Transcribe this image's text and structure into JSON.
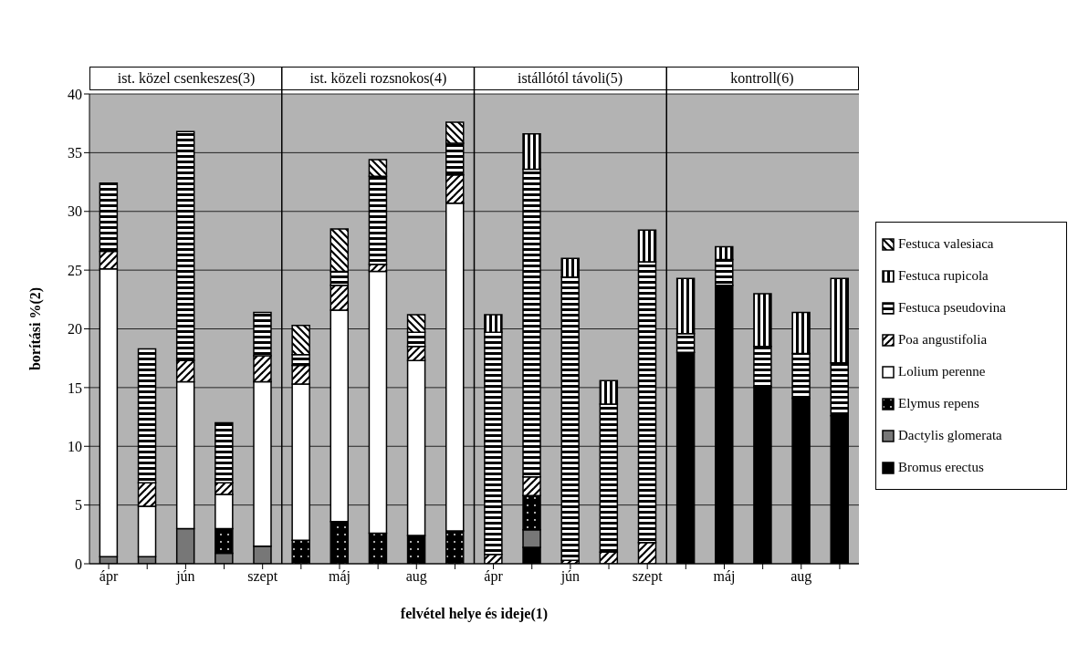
{
  "chart_data": {
    "type": "bar",
    "stacked": true,
    "xlabel": "felvétel helye és ideje(1)",
    "ylabel": "borítási %(2)",
    "annotations": [
      "ist. közel csenkeszes(3)",
      "ist. közeli rozsnokos(4)",
      "istállótól távoli(5)",
      "kontroll(6)"
    ],
    "categories": [
      "ápr",
      null,
      "jún",
      null,
      "szept",
      null,
      "máj",
      null,
      "aug",
      null,
      "ápr",
      null,
      "jún",
      null,
      "szept",
      null,
      "máj",
      null,
      "aug",
      null
    ],
    "series": [
      {
        "name": "Bromus erectus",
        "color": "#000000",
        "values": [
          0,
          0,
          0,
          0,
          0,
          0,
          0,
          0,
          0,
          0,
          0,
          1.4,
          0,
          0,
          0,
          18.0,
          23.7,
          15.1,
          14.1,
          12.6
        ]
      },
      {
        "name": "Dactylis  glomerata",
        "color": "#777777",
        "values": [
          0.6,
          0.6,
          3.0,
          0.9,
          1.5,
          0,
          0,
          0,
          0,
          0,
          0,
          1.5,
          0,
          0,
          0,
          0,
          0,
          0,
          0,
          0
        ]
      },
      {
        "name": "Elymus repens",
        "color": "#000000",
        "values": [
          0,
          0,
          0,
          2.1,
          0,
          2.0,
          3.6,
          2.6,
          2.4,
          2.8,
          0,
          2.9,
          0,
          0,
          0,
          0,
          0,
          0,
          0,
          0
        ]
      },
      {
        "name": "Lolium perenne",
        "color": "#ffffff",
        "values": [
          24.5,
          4.3,
          12.5,
          2.9,
          14.0,
          13.3,
          18.0,
          22.3,
          14.9,
          27.9,
          0,
          0,
          0,
          0,
          0,
          0,
          0,
          0,
          0,
          0
        ]
      },
      {
        "name": "Poa angustifolia",
        "color": "#000000",
        "values": [
          1.5,
          2.0,
          1.8,
          1.0,
          2.2,
          1.6,
          2.1,
          0.6,
          1.2,
          2.4,
          0.8,
          1.6,
          0.3,
          1.0,
          1.8,
          0,
          0,
          0,
          0,
          0
        ]
      },
      {
        "name": "Festuca pseudovina",
        "color": "#000000",
        "values": [
          5.8,
          11.4,
          19.5,
          5.1,
          3.7,
          0.9,
          1.2,
          7.5,
          1.2,
          2.7,
          18.9,
          26.2,
          24.1,
          12.6,
          23.9,
          1.6,
          2.2,
          3.4,
          3.8,
          4.5
        ]
      },
      {
        "name": "Festuca rupicola",
        "color": "#000000",
        "values": [
          0,
          0,
          0,
          0,
          0,
          0,
          0,
          0,
          0,
          0,
          1.5,
          3.0,
          1.6,
          2.0,
          2.7,
          4.7,
          1.1,
          4.5,
          3.5,
          7.2
        ]
      },
      {
        "name": "Festuca valesiaca",
        "color": "#000000",
        "values": [
          0,
          0,
          0,
          0,
          0,
          2.5,
          3.6,
          1.4,
          1.5,
          1.8,
          0,
          0,
          0,
          0,
          0,
          0,
          0,
          0,
          0,
          0
        ]
      }
    ],
    "ylim": [
      0,
      40
    ],
    "yticks": [
      0,
      5,
      10,
      15,
      20,
      25,
      30,
      35,
      40
    ],
    "grid": "y",
    "legend": "right"
  }
}
